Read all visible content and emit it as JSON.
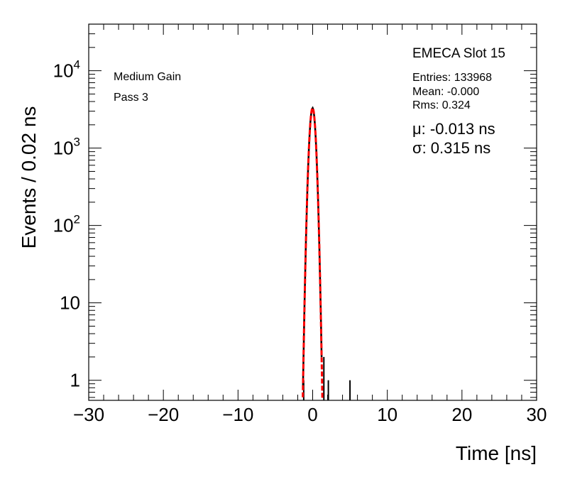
{
  "chart_data": {
    "type": "histogram",
    "xlabel": "Time [ns]",
    "ylabel": "Events / 0.02 ns",
    "xlim": [
      -30,
      30
    ],
    "ylim_log": [
      0.55,
      40000
    ],
    "yscale": "log",
    "x_ticks": [
      {
        "value": -30,
        "label": "−30"
      },
      {
        "value": -20,
        "label": "−20"
      },
      {
        "value": -10,
        "label": "−10"
      },
      {
        "value": 0,
        "label": "0"
      },
      {
        "value": 10,
        "label": "10"
      },
      {
        "value": 20,
        "label": "20"
      },
      {
        "value": 30,
        "label": "30"
      }
    ],
    "y_ticks": [
      {
        "value": 1,
        "base": "1",
        "exp": ""
      },
      {
        "value": 10,
        "base": "10",
        "exp": ""
      },
      {
        "value": 100,
        "base": "10",
        "exp": "2"
      },
      {
        "value": 1000,
        "base": "10",
        "exp": "3"
      },
      {
        "value": 10000,
        "base": "10",
        "exp": "4"
      }
    ],
    "histogram_color": "#000000",
    "fit_color": "#ff0000",
    "fit": {
      "mu": -0.013,
      "sigma": 0.315,
      "peak": 3300
    },
    "outlier_spikes": [
      {
        "x": -1.2,
        "y": 1
      },
      {
        "x": 1.5,
        "y": 2
      },
      {
        "x": 2.1,
        "y": 1
      },
      {
        "x": 5.0,
        "y": 1
      }
    ],
    "annotations": {
      "left_line1": "Medium Gain",
      "left_line2": "Pass 3",
      "slot": "EMECA Slot 15",
      "entries": "Entries: 133968",
      "mean": "Mean: -0.000",
      "rms": "Rms: 0.324",
      "mu_text": "μ: -0.013 ns",
      "sigma_text": "σ: 0.315 ns"
    }
  }
}
